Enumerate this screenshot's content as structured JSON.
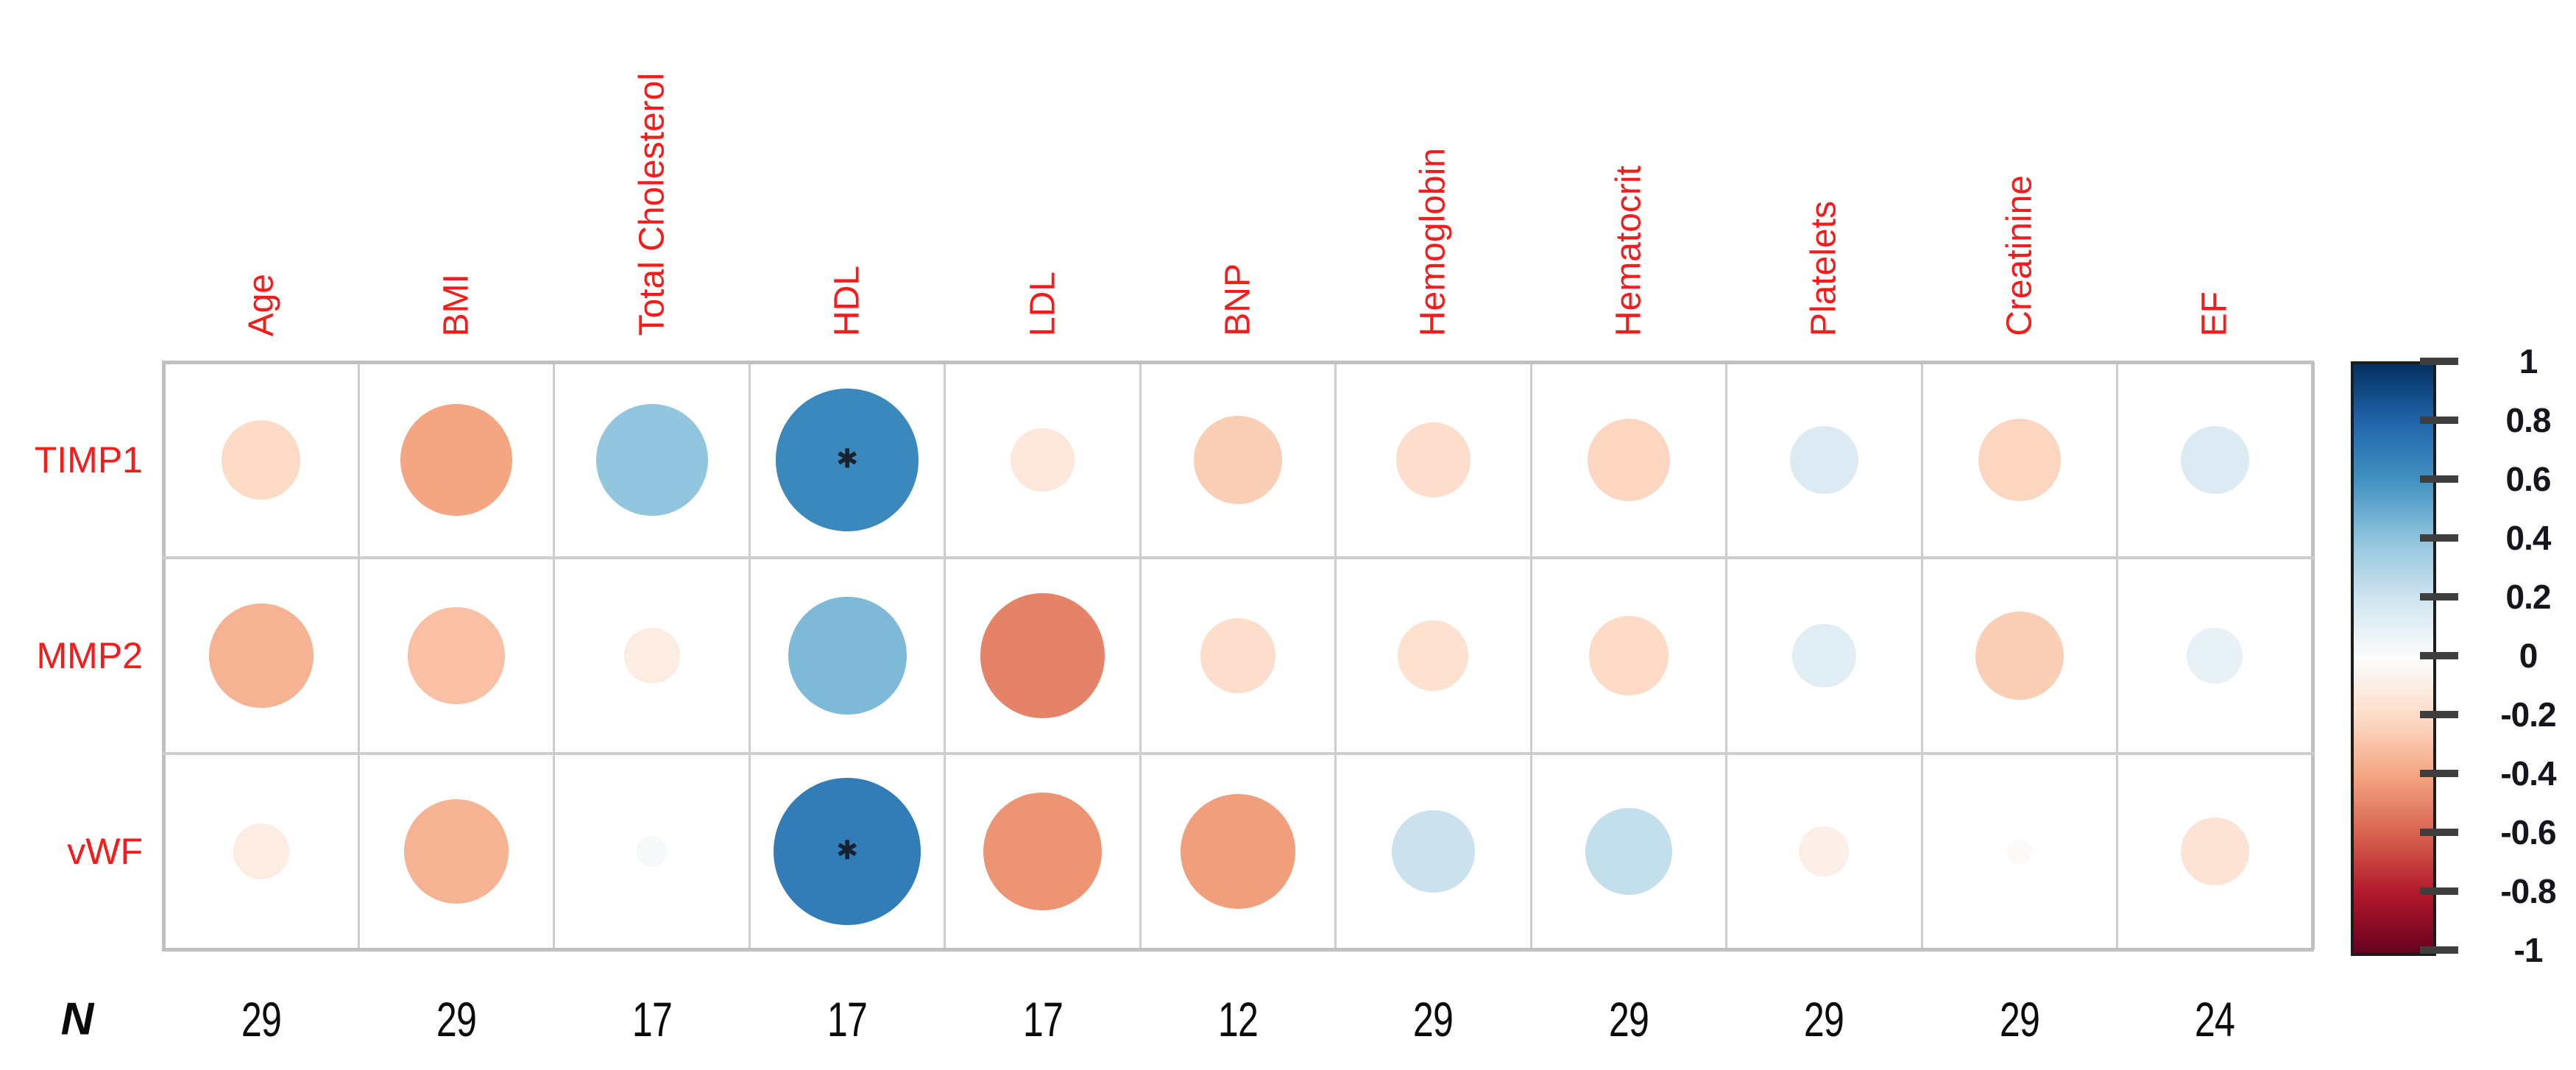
{
  "page": {
    "background": "#ffffff"
  },
  "chart_data": {
    "type": "heatmap",
    "subtype": "correlation-bubble-matrix",
    "title": "",
    "columns": [
      "Age",
      "BMI",
      "Total Cholesterol",
      "HDL",
      "LDL",
      "BNP",
      "Hemoglobin",
      "Hematocrit",
      "Platelets",
      "Creatinine",
      "EF"
    ],
    "rows": [
      "TIMP1",
      "MMP2",
      "vWF"
    ],
    "series": [
      {
        "name": "TIMP1",
        "values": [
          -0.2,
          -0.4,
          0.4,
          0.65,
          -0.13,
          -0.25,
          -0.18,
          -0.22,
          0.15,
          -0.22,
          0.15
        ]
      },
      {
        "name": "MMP2",
        "values": [
          -0.35,
          -0.3,
          -0.1,
          0.45,
          -0.5,
          -0.18,
          -0.16,
          -0.2,
          0.13,
          -0.25,
          0.1
        ]
      },
      {
        "name": "vWF",
        "values": [
          -0.1,
          -0.35,
          0.03,
          0.7,
          -0.45,
          -0.42,
          0.22,
          0.24,
          -0.08,
          -0.02,
          -0.15
        ]
      }
    ],
    "significance_marks": [
      {
        "row": "TIMP1",
        "column": "HDL",
        "symbol": "✱"
      },
      {
        "row": "vWF",
        "column": "HDL",
        "symbol": "✱"
      }
    ],
    "n_row": {
      "label": "N",
      "values": [
        "29",
        "29",
        "17",
        "17",
        "17",
        "12",
        "29",
        "29",
        "29",
        "29",
        "24"
      ]
    },
    "legend": {
      "position": "right",
      "max": 1,
      "min": -1,
      "ticks": [
        "1",
        "0.8",
        "0.6",
        "0.4",
        "0.2",
        "0",
        "-0.2",
        "-0.4",
        "-0.6",
        "-0.8",
        "-1"
      ]
    },
    "value_range": [
      -1,
      1
    ],
    "grid": true,
    "colors": {
      "label_red": "#f71b1b",
      "n_text": "#0a0a0a",
      "star": "#16222e",
      "grid_line": "#cdcdcd",
      "grid_border": "#c0c0c0",
      "legend_border": "#1c1c1c",
      "legend_tick": "#3f3f3f",
      "legend_text": "#15151e",
      "palette_stops": [
        {
          "t": -1.0,
          "c": "#67001F"
        },
        {
          "t": -0.8,
          "c": "#B2182B"
        },
        {
          "t": -0.6,
          "c": "#D6604D"
        },
        {
          "t": -0.4,
          "c": "#F4A582"
        },
        {
          "t": -0.2,
          "c": "#FDDBC7"
        },
        {
          "t": 0.0,
          "c": "#FCFCFC"
        },
        {
          "t": 0.2,
          "c": "#D1E5F0"
        },
        {
          "t": 0.4,
          "c": "#92C5DE"
        },
        {
          "t": 0.6,
          "c": "#4393C3"
        },
        {
          "t": 0.8,
          "c": "#2166AC"
        },
        {
          "t": 1.0,
          "c": "#053061"
        }
      ]
    }
  }
}
